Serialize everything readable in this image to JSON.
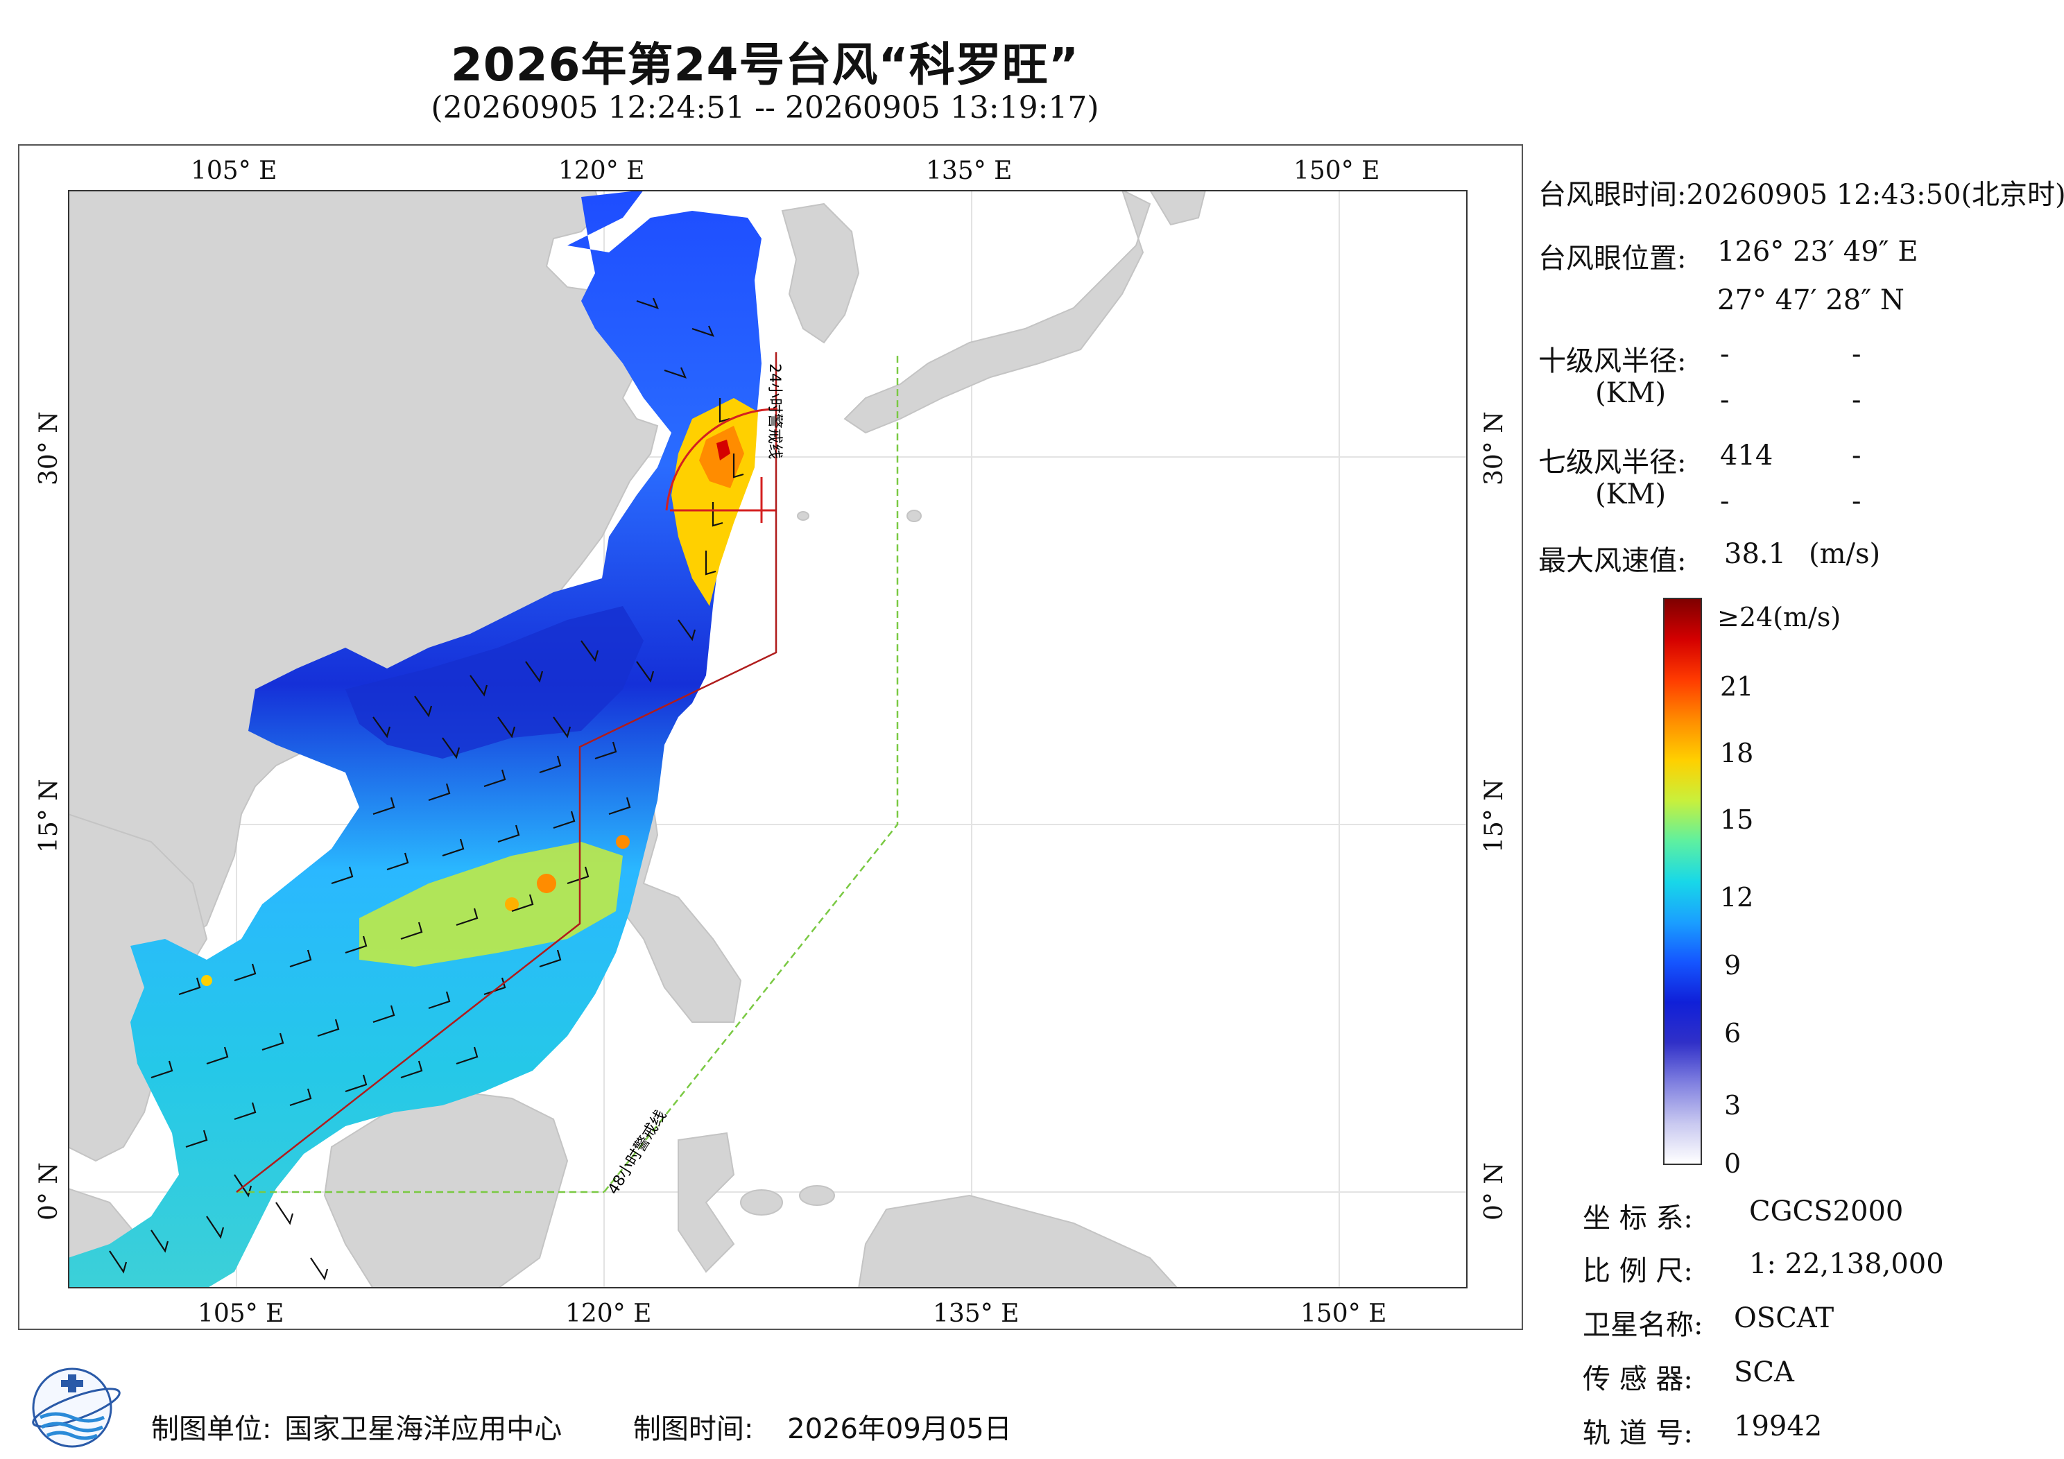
{
  "title": "2026年第24号台风“科罗旺”",
  "subtitle": "(20260905 12:24:51 -- 20260905 13:19:17)",
  "map": {
    "lon_ticks_top": [
      "105° E",
      "120° E",
      "135° E",
      "150° E"
    ],
    "lon_ticks_bottom": [
      "105° E",
      "120° E",
      "135° E",
      "150° E"
    ],
    "lat_ticks_left": [
      "30° N",
      "15° N",
      "0° N"
    ],
    "lat_ticks_right": [
      "30° N",
      "15° N",
      "0° N"
    ],
    "warning_line_24h": "24小时警戒线",
    "warning_line_48h": "48小时警戒线",
    "colors": {
      "land": "#d4d4d4",
      "ocean": "#ffffff",
      "warning_24h": "#b01c1c",
      "warning_48h": "#7ac943",
      "grid": "#e0e0e0"
    }
  },
  "info": {
    "eye_time_label": "台风眼时间:",
    "eye_time_value": "20260905 12:43:50(北京时)",
    "eye_pos_label": "台风眼位置:",
    "eye_lon": "126° 23′ 49″ E",
    "eye_lat": "27° 47′ 28″ N",
    "r10_label": "十级风半径:",
    "r10_v1": "-",
    "r10_v2": "-",
    "r10_unit": "(KM)",
    "r10_v3": "-",
    "r10_v4": "-",
    "r7_label": "七级风半径:",
    "r7_v1": "414",
    "r7_v2": "-",
    "r7_unit": "(KM)",
    "r7_v3": "-",
    "r7_v4": "-",
    "max_wind_label": "最大风速值:",
    "max_wind_value": "38.1",
    "max_wind_unit": "(m/s)"
  },
  "colorbar": {
    "top_label": "≥24(m/s)",
    "labels": [
      "21",
      "18",
      "15",
      "12",
      "9",
      "6",
      "3",
      "0"
    ],
    "colors": [
      "#7f0000",
      "#d40000",
      "#ff3b00",
      "#ff8c00",
      "#ffd000",
      "#c8f03c",
      "#5ef0a0",
      "#18d8e8",
      "#1aa0ff",
      "#1556ff",
      "#1020d8",
      "#3030c8",
      "#8080e0",
      "#c8c8f0",
      "#ffffff"
    ]
  },
  "meta": {
    "coord_label": "坐 标 系:",
    "coord_value": "CGCS2000",
    "scale_label": "比 例 尺:",
    "scale_value": "1: 22,138,000",
    "sat_label": "卫星名称:",
    "sat_value": "OSCAT",
    "sensor_label": "传 感 器:",
    "sensor_value": "SCA",
    "orbit_label": "轨 道 号:",
    "orbit_value": "19942"
  },
  "footer": {
    "org_label": "制图单位:",
    "org_value": "国家卫星海洋应用中心",
    "date_label": "制图时间:",
    "date_value": "2026年09月05日"
  }
}
